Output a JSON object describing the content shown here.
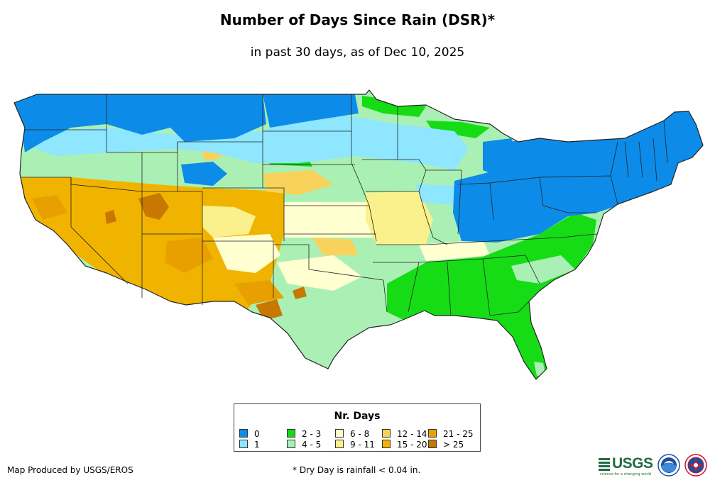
{
  "map": {
    "title": "Number of Days Since Rain (DSR)*",
    "subtitle": "in past 30 days, as of Dec 10, 2025",
    "region": "Contiguous United States"
  },
  "legend": {
    "title": "Nr. Days",
    "categories": [
      {
        "key": "c0",
        "label": "0",
        "color": "#0C8CE8"
      },
      {
        "key": "c1",
        "label": "1",
        "color": "#8EE6FF"
      },
      {
        "key": "c2",
        "label": "2 - 3",
        "color": "#16DC16"
      },
      {
        "key": "c3",
        "label": "4 - 5",
        "color": "#AAF0B4"
      },
      {
        "key": "c4",
        "label": "6 - 8",
        "color": "#FFFFD0"
      },
      {
        "key": "c5",
        "label": "9 - 11",
        "color": "#FAF08C"
      },
      {
        "key": "c6",
        "label": "12 - 14",
        "color": "#F8D25A"
      },
      {
        "key": "c7",
        "label": "15 - 20",
        "color": "#F0B400"
      },
      {
        "key": "c8",
        "label": "21 - 25",
        "color": "#E8A000"
      },
      {
        "key": "c9",
        "label": "> 25",
        "color": "#C87800"
      }
    ]
  },
  "footer": {
    "credit": "Map Produced by USGS/EROS",
    "footnote": "* Dry Day is rainfall < 0.04 in.",
    "logo_usgs": "USGS",
    "logo_usgs_tagline": "science for a changing world",
    "logo_noaa": "NOAA",
    "logo_nws": "National Weather Service"
  }
}
